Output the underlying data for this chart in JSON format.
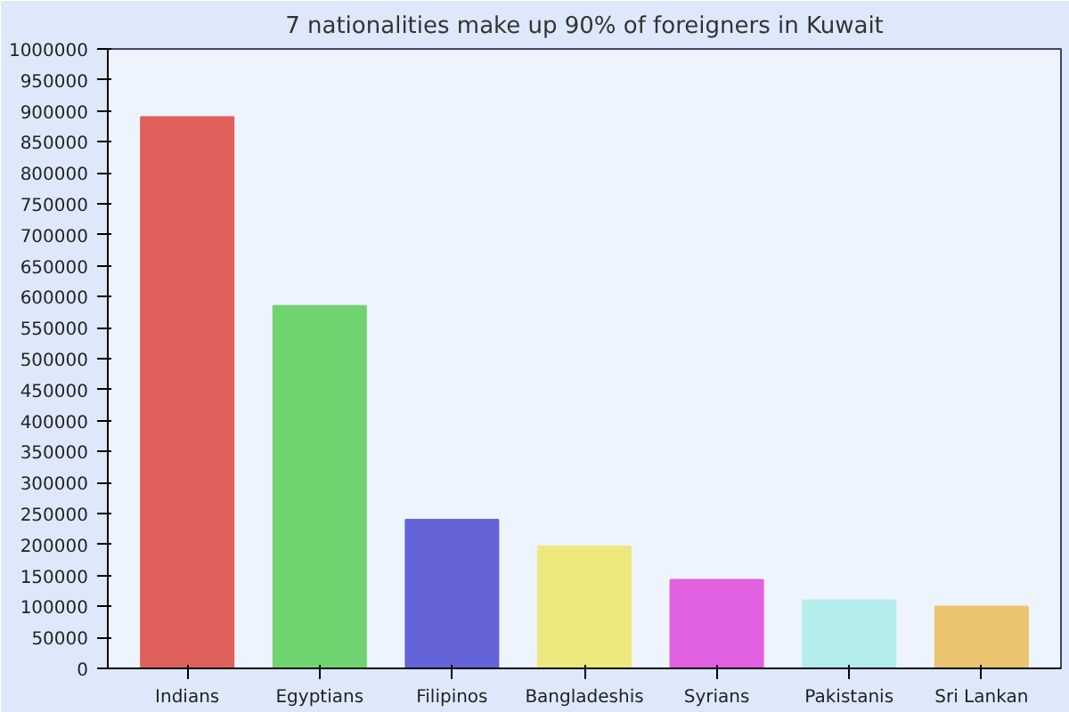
{
  "chart_data": {
    "type": "bar",
    "title": "7 nationalities make up 90% of foreigners in Kuwait",
    "categories": [
      "Indians",
      "Egyptians",
      "Filipinos",
      "Bangladeshis",
      "Syrians",
      "Pakistanis",
      "Sri Lankan"
    ],
    "values": [
      890000,
      585000,
      240000,
      197000,
      143000,
      110000,
      100000
    ],
    "colors": [
      "#e0605c",
      "#6fd46f",
      "#6464d8",
      "#ece87c",
      "#e060e0",
      "#b4ecec",
      "#eac46e"
    ],
    "ylim": [
      0,
      1000000
    ],
    "yticks": [
      0,
      50000,
      100000,
      150000,
      200000,
      250000,
      300000,
      350000,
      400000,
      450000,
      500000,
      550000,
      600000,
      650000,
      700000,
      750000,
      800000,
      850000,
      900000,
      950000,
      1000000
    ],
    "grid": false
  }
}
